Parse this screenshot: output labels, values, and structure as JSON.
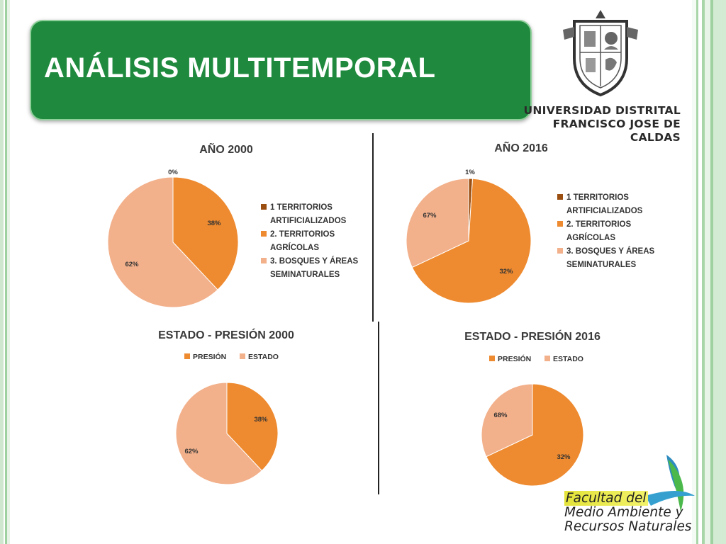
{
  "title": "ANÁLISIS MULTITEMPORAL",
  "university": {
    "line1": "UNIVERSIDAD DISTRITAL",
    "line2": "FRANCISCO JOSE DE CALDAS"
  },
  "faculty": {
    "line1": "Facultad del",
    "line2": "Medio Ambiente y",
    "line3": "Recursos Naturales"
  },
  "colors": {
    "title_bg": "#1f8a3e",
    "orange": "#ee8a2f",
    "peach": "#f2b08b"
  },
  "chart_data": [
    {
      "type": "pie",
      "title": "AÑO 2000",
      "series": [
        {
          "labels": [
            "1 TERRITORIOS ARTIFICIALIZADOS",
            "2. TERRITORIOS AGRÍCOLAS",
            "3. BOSQUES Y ÁREAS SEMINATURALES"
          ],
          "values": [
            0,
            38,
            62
          ],
          "data_labels": [
            "0%",
            "38%",
            "62%"
          ]
        }
      ],
      "legend": [
        "1 TERRITORIOS ARTIFICIALIZADOS",
        "2. TERRITORIOS AGRÍCOLAS",
        "3. BOSQUES Y ÁREAS SEMINATURALES"
      ],
      "legend_placement": "right"
    },
    {
      "type": "pie",
      "title": "AÑO 2016",
      "series": [
        {
          "labels": [
            "1 TERRITORIOS ARTIFICIALIZADOS",
            "2. TERRITORIOS AGRÍCOLAS",
            "3. BOSQUES Y ÁREAS SEMINATURALES"
          ],
          "values": [
            1,
            67,
            32
          ],
          "data_labels": [
            "1%",
            "67%",
            "32%"
          ]
        }
      ],
      "legend": [
        "1 TERRITORIOS ARTIFICIALIZADOS",
        "2. TERRITORIOS AGRÍCOLAS",
        "3. BOSQUES Y ÁREAS SEMINATURALES"
      ],
      "legend_placement": "right"
    },
    {
      "type": "pie",
      "title": "ESTADO - PRESIÓN 2000",
      "series": [
        {
          "labels": [
            "PRESIÓN",
            "ESTADO"
          ],
          "values": [
            38,
            62
          ],
          "data_labels": [
            "38%",
            "62%"
          ]
        }
      ],
      "legend": [
        "PRESIÓN",
        "ESTADO"
      ],
      "legend_placement": "top"
    },
    {
      "type": "pie",
      "title": "ESTADO - PRESIÓN 2016",
      "series": [
        {
          "labels": [
            "PRESIÓN",
            "ESTADO"
          ],
          "values": [
            68,
            32
          ],
          "data_labels": [
            "68%",
            "32%"
          ]
        }
      ],
      "legend": [
        "PRESIÓN",
        "ESTADO"
      ],
      "legend_placement": "top"
    }
  ]
}
